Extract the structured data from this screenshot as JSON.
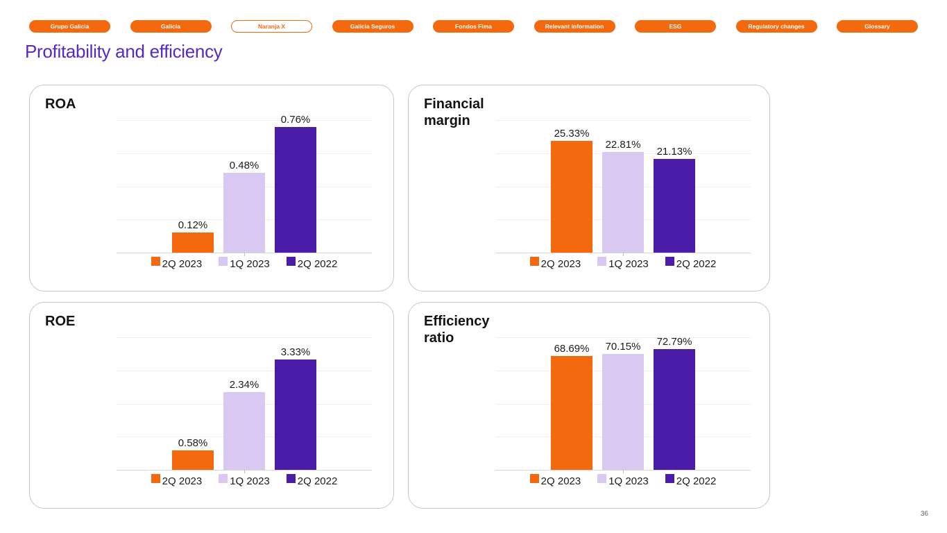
{
  "page": {
    "title": "Profitability and efficiency",
    "page_number": "36"
  },
  "colors": {
    "accent_orange": "#F4690D",
    "lavender": "#D9C8F1",
    "dark_purple": "#4A1CA8",
    "title_purple": "#5627CA"
  },
  "nav": {
    "items": [
      {
        "label": "Grupo Galicia",
        "style": "filled"
      },
      {
        "label": "Galicia",
        "style": "filled"
      },
      {
        "label": "Naranja X",
        "style": "outlined"
      },
      {
        "label": "Galicia Seguros",
        "style": "filled"
      },
      {
        "label": "Fondos Fima",
        "style": "filled"
      },
      {
        "label": "Relevant information",
        "style": "filled"
      },
      {
        "label": "ESG",
        "style": "filled"
      },
      {
        "label": "Regulatory changes",
        "style": "filled"
      },
      {
        "label": "Glossary",
        "style": "filled"
      }
    ]
  },
  "legend": [
    "2Q 2023",
    "1Q 2023",
    "2Q 2022"
  ],
  "series_colors": [
    "#F4690D",
    "#D9C8F1",
    "#4A1CA8"
  ],
  "chart_data": [
    {
      "type": "bar",
      "title": "ROA",
      "categories": [
        "2Q 2023",
        "1Q 2023",
        "2Q 2022"
      ],
      "values": [
        0.12,
        0.48,
        0.76
      ],
      "labels": [
        "0.12%",
        "0.48%",
        "0.76%"
      ],
      "ylim": [
        0,
        0.8
      ],
      "unit": "%",
      "grid": true,
      "legend_position": "bottom"
    },
    {
      "type": "bar",
      "title": "Financial margin",
      "categories": [
        "2Q 2023",
        "1Q 2023",
        "2Q 2022"
      ],
      "values": [
        25.33,
        22.81,
        21.13
      ],
      "labels": [
        "25.33%",
        "22.81%",
        "21.13%"
      ],
      "ylim": [
        0,
        30
      ],
      "unit": "%",
      "grid": true,
      "legend_position": "bottom"
    },
    {
      "type": "bar",
      "title": "ROE",
      "categories": [
        "2Q 2023",
        "1Q 2023",
        "2Q 2022"
      ],
      "values": [
        0.58,
        2.34,
        3.33
      ],
      "labels": [
        "0.58%",
        "2.34%",
        "3.33%"
      ],
      "ylim": [
        0,
        4
      ],
      "unit": "%",
      "grid": true,
      "legend_position": "bottom"
    },
    {
      "type": "bar",
      "title": "Efficiency ratio",
      "categories": [
        "2Q 2023",
        "1Q 2023",
        "2Q 2022"
      ],
      "values": [
        68.69,
        70.15,
        72.79
      ],
      "labels": [
        "68.69%",
        "70.15%",
        "72.79%"
      ],
      "ylim": [
        0,
        80
      ],
      "unit": "%",
      "grid": true,
      "legend_position": "bottom"
    }
  ]
}
